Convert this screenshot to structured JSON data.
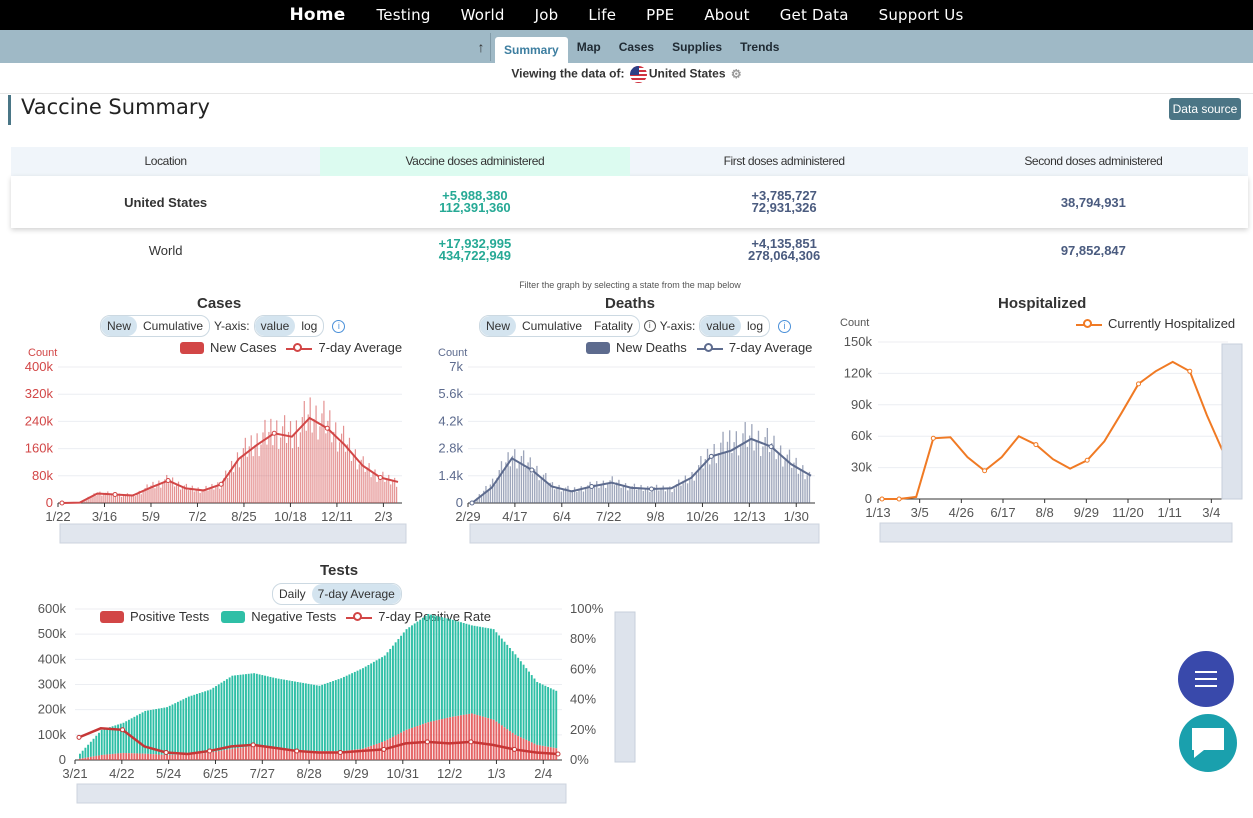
{
  "nav": {
    "items": [
      "Home",
      "Testing",
      "World",
      "Job",
      "Life",
      "PPE",
      "About",
      "Get Data",
      "Support Us"
    ]
  },
  "subnav": {
    "up_icon": "arrow-up-icon",
    "tabs": [
      "Summary",
      "Map",
      "Cases",
      "Supplies",
      "Trends"
    ],
    "active": "Summary"
  },
  "viewing": {
    "label": "Viewing the data of:",
    "country": "United States"
  },
  "vaccine": {
    "title": "Vaccine Summary",
    "data_source": "Data source",
    "headers": [
      "Location",
      "Vaccine doses administered",
      "First doses administered",
      "Second doses administered"
    ],
    "rows": [
      {
        "location": "United States",
        "total_new": "+5,988,380",
        "total": "112,391,360",
        "first_new": "+3,785,727",
        "first": "72,931,326",
        "second": "38,794,931"
      },
      {
        "location": "World",
        "total_new": "+17,932,995",
        "total": "434,722,949",
        "first_new": "+4,135,851",
        "first": "278,064,306",
        "second": "97,852,847"
      }
    ]
  },
  "filter_note": "Filter the graph by selecting a state from the map below",
  "cases": {
    "title": "Cases",
    "toggle": [
      "New",
      "Cumulative"
    ],
    "yaxis_label": "Y-axis:",
    "yaxis_toggle": [
      "value",
      "log"
    ],
    "legend_bar": "New Cases",
    "legend_line": "7-day Average"
  },
  "deaths": {
    "title": "Deaths",
    "toggle": [
      "New",
      "Cumulative",
      "Fatality"
    ],
    "yaxis_label": "Y-axis:",
    "yaxis_toggle": [
      "value",
      "log"
    ],
    "legend_bar": "New Deaths",
    "legend_line": "7-day Average"
  },
  "hosp": {
    "title": "Hospitalized",
    "legend_line": "Currently Hospitalized"
  },
  "tests": {
    "title": "Tests",
    "toggle": [
      "Daily",
      "7-day Average"
    ],
    "legend": [
      "Positive Tests",
      "Negative Tests",
      "7-day Positive Rate"
    ]
  },
  "colors": {
    "cases": "#d24646",
    "deaths": "#5d6b8e",
    "hosp": "#f07a24",
    "negative": "#2fbfa6",
    "nav": "#000000",
    "subnav": "#9fb9c6"
  },
  "chart_data": [
    {
      "type": "bar",
      "title": "Cases",
      "ylabel": "Count",
      "ylim": [
        0,
        400000
      ],
      "yticks": [
        "0",
        "80k",
        "160k",
        "240k",
        "320k",
        "400k"
      ],
      "xticks": [
        "1/22",
        "3/16",
        "5/9",
        "7/2",
        "8/25",
        "10/18",
        "12/11",
        "2/3"
      ],
      "series": [
        {
          "name": "New Cases",
          "kind": "bar",
          "x": [
            "1/22",
            "3/16",
            "4/10",
            "5/9",
            "6/5",
            "7/2",
            "7/25",
            "8/25",
            "9/20",
            "10/18",
            "11/10",
            "11/28",
            "12/11",
            "12/25",
            "1/8",
            "1/15",
            "1/25",
            "2/3",
            "2/15",
            "2/28"
          ],
          "values": [
            0,
            2000,
            30000,
            25000,
            22000,
            50000,
            68000,
            45000,
            38000,
            58000,
            140000,
            180000,
            215000,
            200000,
            260000,
            235000,
            175000,
            110000,
            75000,
            62000
          ]
        },
        {
          "name": "7-day Average",
          "kind": "line",
          "x": [
            "1/22",
            "3/16",
            "4/10",
            "5/9",
            "6/5",
            "7/2",
            "7/25",
            "8/25",
            "9/20",
            "10/18",
            "11/10",
            "11/28",
            "12/11",
            "12/25",
            "1/8",
            "1/15",
            "1/25",
            "2/3",
            "2/15",
            "2/28"
          ],
          "values": [
            0,
            1000,
            28000,
            25000,
            22000,
            45000,
            66000,
            43000,
            37000,
            55000,
            130000,
            170000,
            205000,
            195000,
            250000,
            220000,
            170000,
            110000,
            75000,
            62000
          ]
        }
      ]
    },
    {
      "type": "bar",
      "title": "Deaths",
      "ylabel": "Count",
      "ylim": [
        0,
        7000
      ],
      "yticks": [
        "0",
        "1.4k",
        "2.8k",
        "4.2k",
        "5.6k",
        "7k"
      ],
      "xticks": [
        "2/29",
        "4/17",
        "6/4",
        "7/22",
        "9/8",
        "10/26",
        "12/13",
        "1/30"
      ],
      "series": [
        {
          "name": "New Deaths",
          "kind": "bar",
          "x": [
            "2/29",
            "4/1",
            "4/17",
            "5/5",
            "6/4",
            "7/1",
            "7/22",
            "8/15",
            "9/8",
            "10/1",
            "10/26",
            "11/20",
            "12/13",
            "1/1",
            "1/15",
            "1/30",
            "2/15",
            "2/28"
          ],
          "values": [
            0,
            1100,
            2500,
            1900,
            900,
            650,
            900,
            1100,
            800,
            750,
            750,
            1400,
            2600,
            3200,
            3400,
            3000,
            2100,
            1400
          ]
        },
        {
          "name": "7-day Average",
          "kind": "line",
          "x": [
            "2/29",
            "4/1",
            "4/17",
            "5/5",
            "6/4",
            "7/1",
            "7/22",
            "8/15",
            "9/8",
            "10/1",
            "10/26",
            "11/20",
            "12/13",
            "1/1",
            "1/15",
            "1/30",
            "2/15",
            "2/28"
          ],
          "values": [
            0,
            800,
            2300,
            1700,
            850,
            600,
            850,
            1050,
            780,
            720,
            760,
            1300,
            2400,
            2700,
            3300,
            2900,
            2000,
            1400
          ]
        }
      ]
    },
    {
      "type": "line",
      "title": "Hospitalized",
      "ylabel": "Count",
      "xlabel": "date",
      "ylim": [
        0,
        150000
      ],
      "yticks": [
        "0",
        "30k",
        "60k",
        "90k",
        "120k",
        "150k"
      ],
      "xticks": [
        "1/13",
        "3/5",
        "4/26",
        "6/17",
        "8/8",
        "9/29",
        "11/20",
        "1/11",
        "3/4"
      ],
      "series": [
        {
          "name": "Currently Hospitalized",
          "x": [
            "1/13",
            "3/5",
            "3/20",
            "4/10",
            "4/26",
            "5/20",
            "6/17",
            "7/5",
            "7/22",
            "8/8",
            "8/30",
            "9/29",
            "10/20",
            "11/5",
            "11/20",
            "12/10",
            "12/25",
            "1/11",
            "1/25",
            "2/10",
            "3/4"
          ],
          "values": [
            0,
            0,
            2000,
            58000,
            59000,
            40000,
            27000,
            40000,
            60000,
            52000,
            38000,
            29000,
            37000,
            55000,
            82000,
            110000,
            122000,
            131000,
            122000,
            80000,
            43000
          ]
        }
      ]
    },
    {
      "type": "bar",
      "title": "Tests",
      "ylim": [
        0,
        600000
      ],
      "y2lim": [
        0,
        100
      ],
      "yticks": [
        "0",
        "100k",
        "200k",
        "300k",
        "400k",
        "500k",
        "600k"
      ],
      "y2ticks": [
        "0%",
        "20%",
        "40%",
        "60%",
        "80%",
        "100%"
      ],
      "xticks": [
        "3/21",
        "4/22",
        "5/24",
        "6/25",
        "7/27",
        "8/28",
        "9/29",
        "10/31",
        "12/2",
        "1/3",
        "2/4"
      ],
      "series": [
        {
          "name": "Positive Tests",
          "kind": "bar-stacked",
          "x": [
            "3/21",
            "4/5",
            "4/22",
            "5/10",
            "5/24",
            "6/10",
            "6/25",
            "7/10",
            "7/27",
            "8/10",
            "8/28",
            "9/10",
            "9/29",
            "10/15",
            "10/31",
            "11/15",
            "12/2",
            "12/18",
            "1/3",
            "1/18",
            "2/4",
            "2/20",
            "3/5"
          ],
          "values": [
            5000,
            20000,
            28000,
            25000,
            20000,
            22000,
            30000,
            45000,
            55000,
            45000,
            40000,
            35000,
            35000,
            45000,
            75000,
            120000,
            150000,
            170000,
            185000,
            160000,
            100000,
            60000,
            45000
          ]
        },
        {
          "name": "Negative Tests",
          "kind": "bar-stacked",
          "x": [
            "3/21",
            "4/5",
            "4/22",
            "5/10",
            "5/24",
            "6/10",
            "6/25",
            "7/10",
            "7/27",
            "8/10",
            "8/28",
            "9/10",
            "9/29",
            "10/15",
            "10/31",
            "11/15",
            "12/2",
            "12/18",
            "1/3",
            "1/18",
            "2/4",
            "2/20",
            "3/5"
          ],
          "values": [
            20000,
            100000,
            120000,
            170000,
            190000,
            230000,
            250000,
            290000,
            290000,
            280000,
            270000,
            260000,
            290000,
            320000,
            340000,
            400000,
            430000,
            390000,
            350000,
            360000,
            320000,
            250000,
            225000
          ]
        },
        {
          "name": "7-day Positive Rate",
          "kind": "line",
          "axis": "right",
          "x": [
            "3/21",
            "4/5",
            "4/22",
            "5/10",
            "5/24",
            "6/10",
            "6/25",
            "7/10",
            "7/27",
            "8/10",
            "8/28",
            "9/10",
            "9/29",
            "10/15",
            "10/31",
            "11/15",
            "12/2",
            "12/18",
            "1/3",
            "1/18",
            "2/4",
            "2/20",
            "3/5"
          ],
          "values": [
            15,
            21,
            20,
            9,
            5,
            4,
            6,
            9,
            10,
            8,
            6,
            5,
            5,
            6,
            7,
            11,
            12,
            11,
            12,
            10,
            7,
            5,
            4
          ]
        }
      ]
    }
  ]
}
